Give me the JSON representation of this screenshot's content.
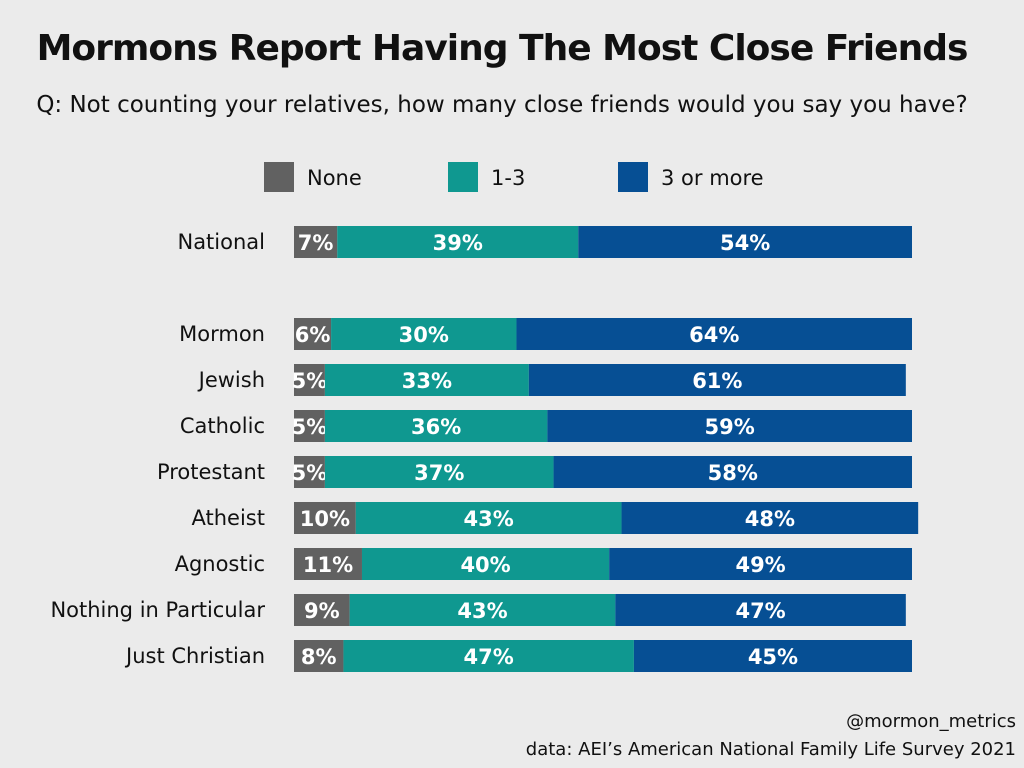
{
  "chart_data": {
    "type": "bar",
    "orientation": "horizontal",
    "stacked": true,
    "title": "Mormons Report Having The Most Close Friends",
    "subtitle": "Q: Not counting your relatives, how many close friends would you say you have?",
    "categories": [
      "National",
      "Mormon",
      "Jewish",
      "Catholic",
      "Protestant",
      "Atheist",
      "Agnostic",
      "Nothing in Particular",
      "Just Christian"
    ],
    "series": [
      {
        "name": "None",
        "color": "#616161",
        "values": [
          7,
          6,
          5,
          5,
          5,
          10,
          11,
          9,
          8
        ]
      },
      {
        "name": "1-3",
        "color": "#0f9890",
        "values": [
          39,
          30,
          33,
          36,
          37,
          43,
          40,
          43,
          47
        ]
      },
      {
        "name": "3 or more",
        "color": "#064f94",
        "values": [
          54,
          64,
          61,
          59,
          58,
          48,
          49,
          47,
          45
        ]
      }
    ],
    "value_suffix": "%",
    "xlim": [
      0,
      100
    ],
    "legend_position": "top"
  },
  "footer": {
    "credit": "@mormon_metrics",
    "source": "data: AEI’s American National Family Life Survey 2021"
  }
}
